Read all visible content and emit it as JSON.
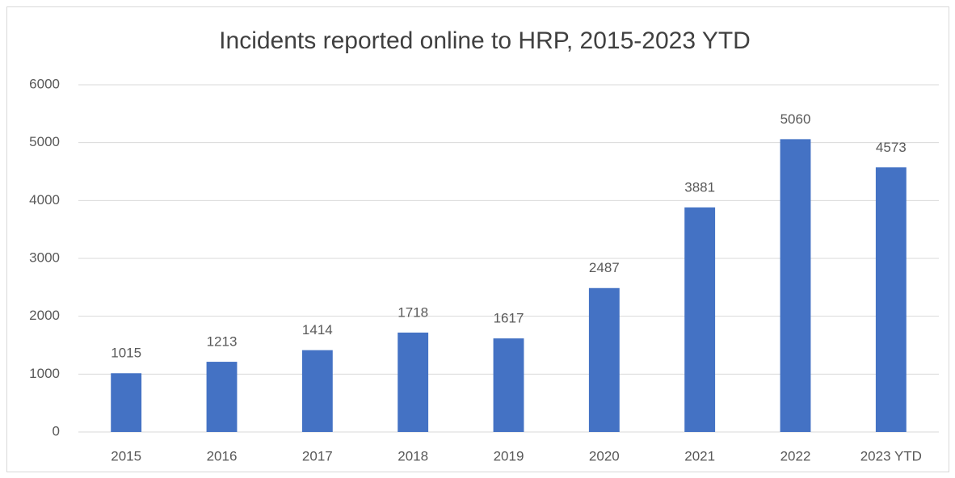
{
  "chart_data": {
    "type": "bar",
    "title": "Incidents reported online to HRP, 2015-2023 YTD",
    "categories": [
      "2015",
      "2016",
      "2017",
      "2018",
      "2019",
      "2020",
      "2021",
      "2022",
      "2023 YTD"
    ],
    "values": [
      1015,
      1213,
      1414,
      1718,
      1617,
      2487,
      3881,
      5060,
      4573
    ],
    "color": "#4472c4",
    "ylim": [
      0,
      6000
    ],
    "yticks": [
      0,
      1000,
      2000,
      3000,
      4000,
      5000,
      6000
    ],
    "grid": true
  }
}
